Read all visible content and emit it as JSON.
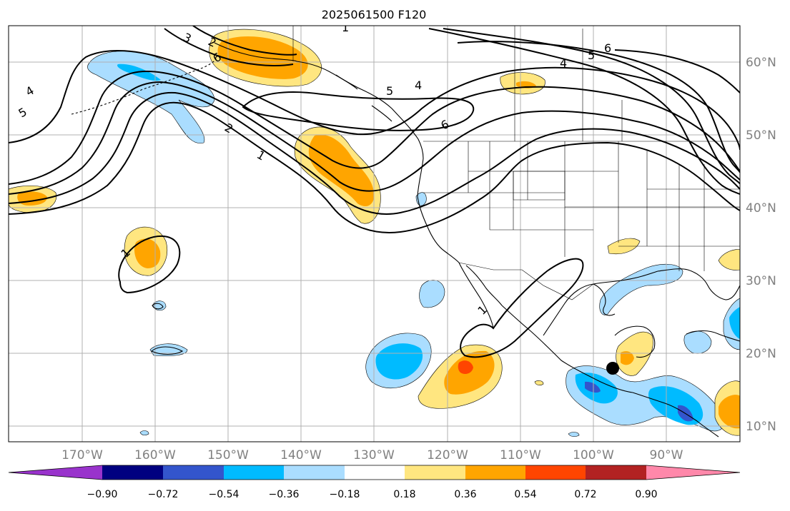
{
  "title": "2025061500 F120",
  "lat_labels": [
    "60°N",
    "50°N",
    "40°N",
    "30°N",
    "20°N",
    "10°N"
  ],
  "lon_labels": [
    "170°W",
    "160°W",
    "150°W",
    "140°W",
    "130°W",
    "120°W",
    "110°W",
    "100°W",
    "90°W"
  ],
  "colorbar": {
    "tick_labels": [
      "−0.90",
      "−0.72",
      "−0.54",
      "−0.36",
      "−0.18",
      "0.18",
      "0.36",
      "0.54",
      "0.72",
      "0.90"
    ],
    "colors": [
      "#9933cc",
      "#000080",
      "#3355cc",
      "#00bbff",
      "#aaddff",
      "#ffffff",
      "#ffe680",
      "#ffa500",
      "#ff4500",
      "#b22222",
      "#ff88aa"
    ]
  },
  "contour_labels": [
    "1",
    "2",
    "3",
    "4",
    "5",
    "6",
    "5",
    "4",
    "6",
    "5",
    "4",
    "6",
    "2",
    "1",
    "1",
    "1"
  ],
  "colors": {
    "grid": "#b0b0b0",
    "contour": "#000000",
    "coast": "#000000",
    "marker": "#000000"
  }
}
